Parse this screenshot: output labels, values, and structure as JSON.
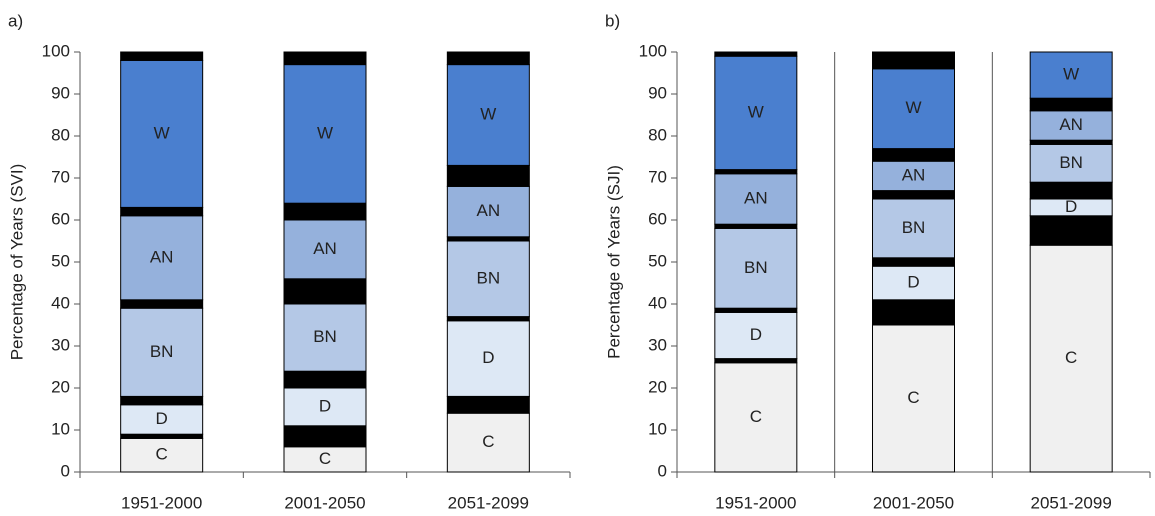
{
  "chart_data": [
    {
      "type": "stacked_bar",
      "panel_label": "a)",
      "y_label": "Percentage of Years (SVI)",
      "categories": [
        "1951-2000",
        "2001-2050",
        "2051-2099"
      ],
      "ylim": [
        0,
        100
      ],
      "yticks": [
        0,
        10,
        20,
        30,
        40,
        50,
        60,
        70,
        80,
        90,
        100
      ],
      "category_separators": false,
      "series": [
        {
          "name": "C",
          "color": "#f0f0f0",
          "values": [
            8,
            6,
            14
          ]
        },
        {
          "color": "#000000",
          "values": [
            1,
            5,
            4
          ]
        },
        {
          "name": "D",
          "color": "#dde8f5",
          "values": [
            7,
            9,
            18
          ]
        },
        {
          "color": "#000000",
          "values": [
            2,
            4,
            1
          ]
        },
        {
          "name": "BN",
          "color": "#b4c8e6",
          "values": [
            21,
            16,
            18
          ]
        },
        {
          "color": "#000000",
          "values": [
            2,
            6,
            1
          ]
        },
        {
          "name": "AN",
          "color": "#95b1dc",
          "values": [
            20,
            14,
            12
          ]
        },
        {
          "color": "#000000",
          "values": [
            2,
            4,
            5
          ]
        },
        {
          "name": "W",
          "color": "#4a7fcf",
          "values": [
            35,
            33,
            24
          ]
        },
        {
          "color": "#000000",
          "values": [
            2,
            3,
            3
          ]
        }
      ]
    },
    {
      "type": "stacked_bar",
      "panel_label": "b)",
      "y_label": "Percentage of Years (SJI)",
      "categories": [
        "1951-2000",
        "2001-2050",
        "2051-2099"
      ],
      "ylim": [
        0,
        100
      ],
      "yticks": [
        0,
        10,
        20,
        30,
        40,
        50,
        60,
        70,
        80,
        90,
        100
      ],
      "category_separators": true,
      "series": [
        {
          "name": "C",
          "color": "#f0f0f0",
          "values": [
            26,
            35,
            54
          ]
        },
        {
          "color": "#000000",
          "values": [
            1,
            6,
            7
          ]
        },
        {
          "name": "D",
          "color": "#dde8f5",
          "values": [
            11,
            8,
            4
          ]
        },
        {
          "color": "#000000",
          "values": [
            1,
            2,
            4
          ]
        },
        {
          "name": "BN",
          "color": "#b4c8e6",
          "values": [
            19,
            14,
            9
          ]
        },
        {
          "color": "#000000",
          "values": [
            1,
            2,
            1
          ]
        },
        {
          "name": "AN",
          "color": "#95b1dc",
          "values": [
            12,
            7,
            7
          ]
        },
        {
          "color": "#000000",
          "values": [
            1,
            3,
            3
          ]
        },
        {
          "name": "W",
          "color": "#4a7fcf",
          "values": [
            27,
            19,
            11
          ]
        },
        {
          "color": "#000000",
          "values": [
            1,
            4,
            0
          ]
        }
      ]
    }
  ]
}
